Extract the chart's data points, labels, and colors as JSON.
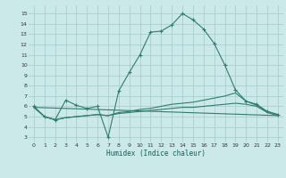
{
  "bg_color": "#cce9e9",
  "grid_color": "#aacfcf",
  "line_color": "#2e7d6e",
  "xlabel": "Humidex (Indice chaleur)",
  "xlim": [
    -0.5,
    23.5
  ],
  "ylim": [
    2.5,
    15.8
  ],
  "yticks": [
    3,
    4,
    5,
    6,
    7,
    8,
    9,
    10,
    11,
    12,
    13,
    14,
    15
  ],
  "xticks": [
    0,
    1,
    2,
    3,
    4,
    5,
    6,
    7,
    8,
    9,
    10,
    11,
    12,
    13,
    14,
    15,
    16,
    17,
    18,
    19,
    20,
    21,
    22,
    23
  ],
  "series1_x": [
    0,
    1,
    2,
    3,
    4,
    5,
    6,
    7,
    8,
    9,
    10,
    11,
    12,
    13,
    14,
    15,
    16,
    17,
    18,
    19,
    20,
    21,
    22,
    23
  ],
  "series1_y": [
    6.0,
    5.0,
    4.7,
    6.6,
    6.1,
    5.8,
    6.0,
    3.0,
    7.5,
    9.3,
    11.0,
    13.2,
    13.3,
    13.9,
    15.0,
    14.4,
    13.5,
    12.1,
    10.0,
    7.6,
    6.5,
    6.2,
    5.5,
    5.2
  ],
  "series2_x": [
    0,
    1,
    2,
    3,
    4,
    5,
    6,
    7,
    8,
    9,
    10,
    11,
    12,
    13,
    14,
    15,
    16,
    17,
    18,
    19,
    20,
    21,
    22,
    23
  ],
  "series2_y": [
    5.9,
    5.0,
    4.7,
    4.9,
    5.0,
    5.1,
    5.2,
    5.1,
    5.3,
    5.4,
    5.5,
    5.6,
    5.7,
    5.8,
    5.9,
    5.9,
    6.0,
    6.1,
    6.2,
    6.3,
    6.2,
    6.0,
    5.4,
    5.1
  ],
  "series3_x": [
    0,
    1,
    2,
    3,
    4,
    5,
    6,
    7,
    8,
    9,
    10,
    11,
    12,
    13,
    14,
    15,
    16,
    17,
    18,
    19,
    20,
    21,
    22,
    23
  ],
  "series3_y": [
    5.9,
    5.0,
    4.7,
    4.9,
    5.0,
    5.1,
    5.2,
    5.1,
    5.4,
    5.5,
    5.7,
    5.8,
    6.0,
    6.2,
    6.3,
    6.4,
    6.6,
    6.8,
    7.0,
    7.3,
    6.5,
    6.1,
    5.5,
    5.2
  ],
  "series4_x": [
    0,
    23
  ],
  "series4_y": [
    5.9,
    5.1
  ]
}
